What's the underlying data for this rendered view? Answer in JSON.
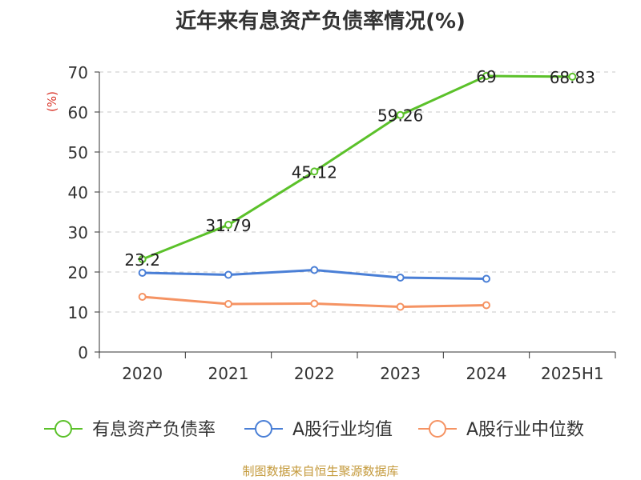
{
  "chart_data": {
    "type": "line",
    "title": "近年来有息资产负债率情况(%)",
    "ylabel": "(%)",
    "xlabel": "",
    "categories": [
      "2020",
      "2021",
      "2022",
      "2023",
      "2024",
      "2025H1"
    ],
    "ylim": [
      0,
      70
    ],
    "yticks": [
      0,
      10,
      20,
      30,
      40,
      50,
      60,
      70
    ],
    "grid": true,
    "legend_position": "bottom",
    "series": [
      {
        "name": "有息资产负债率",
        "color": "#5bc12a",
        "values": [
          23.2,
          31.79,
          45.12,
          59.26,
          69,
          68.83
        ],
        "labels": [
          "23.2",
          "31.79",
          "45.12",
          "59.26",
          "69",
          "68.83"
        ]
      },
      {
        "name": "A股行业均值",
        "color": "#4a7fd6",
        "values": [
          19.8,
          19.3,
          20.5,
          18.6,
          18.3,
          null
        ]
      },
      {
        "name": "A股行业中位数",
        "color": "#f59363",
        "values": [
          13.8,
          12.0,
          12.1,
          11.3,
          11.7,
          null
        ]
      }
    ],
    "source": "制图数据来自恒生聚源数据库"
  }
}
